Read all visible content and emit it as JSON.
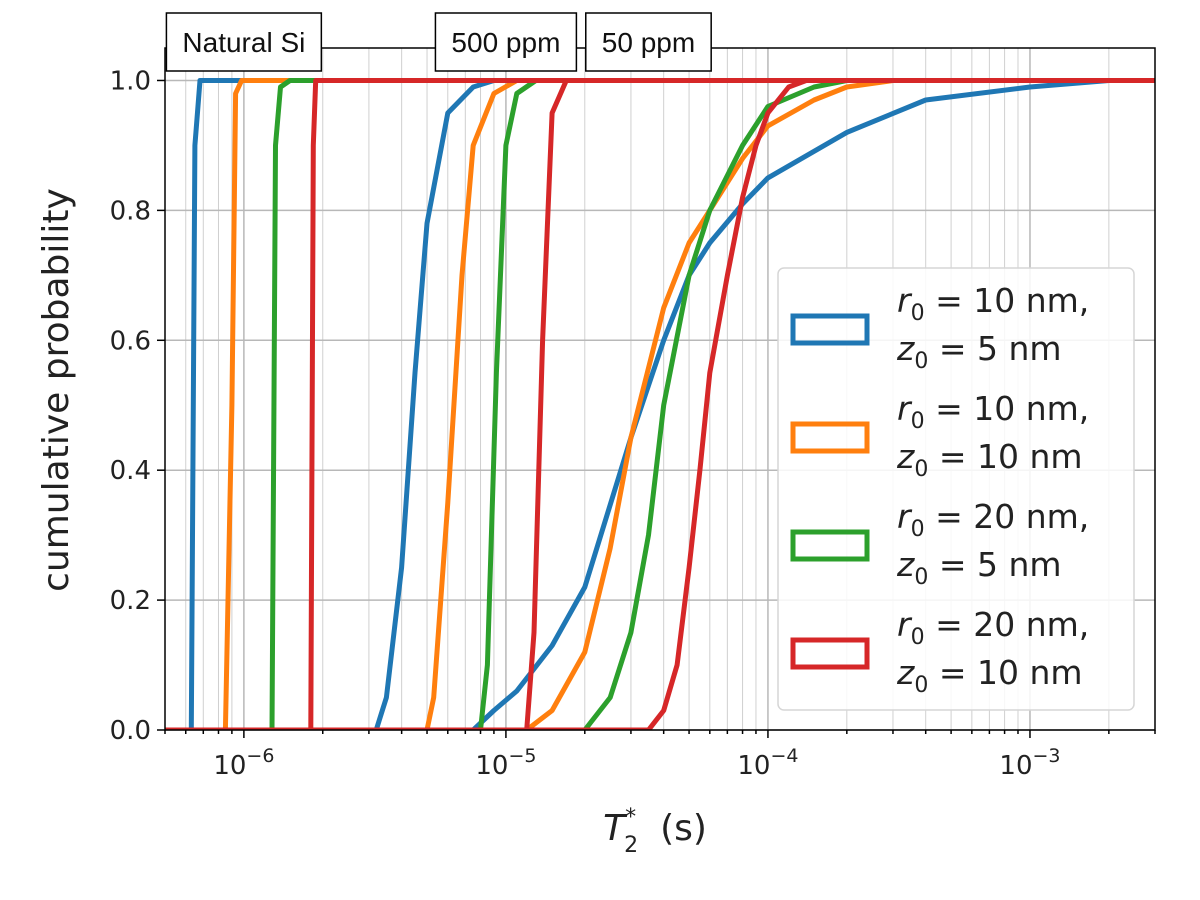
{
  "chart_data": {
    "type": "line",
    "xscale": "log",
    "xlim": [
      5e-07,
      0.003
    ],
    "ylim": [
      0,
      1.05
    ],
    "xlabel": {
      "main": "T",
      "sub": "2",
      "sup": "*",
      "unit": "(s)"
    },
    "ylabel": "cumulative probability",
    "grid": true,
    "xticks": [
      {
        "value": 1e-06,
        "base": "10",
        "exp": "−6"
      },
      {
        "value": 1e-05,
        "base": "10",
        "exp": "−5"
      },
      {
        "value": 0.0001,
        "base": "10",
        "exp": "−4"
      },
      {
        "value": 0.001,
        "base": "10",
        "exp": "−3"
      }
    ],
    "yticks": [
      "0.0",
      "0.2",
      "0.4",
      "0.6",
      "0.8",
      "1.0"
    ],
    "group_labels": [
      {
        "text": "Natural Si",
        "x": 1e-06
      },
      {
        "text": "500 ppm",
        "x": 1e-05
      },
      {
        "text": "50 ppm",
        "x": 3.5e-05
      }
    ],
    "legend_position": "center-right",
    "series": [
      {
        "name": "r0 = 10 nm, z0 = 5 nm",
        "legend": {
          "r": "10",
          "z": "5"
        },
        "color": "#1f77b4",
        "groups": [
          {
            "points": [
              [
                6e-07,
                0.0
              ],
              [
                6.3e-07,
                0.0
              ],
              [
                6.5e-07,
                0.9
              ],
              [
                6.8e-07,
                1.0
              ],
              [
                0.003,
                1.0
              ]
            ]
          },
          {
            "points": [
              [
                5e-07,
                0.0
              ],
              [
                3.2e-06,
                0.0
              ],
              [
                3.5e-06,
                0.05
              ],
              [
                4e-06,
                0.25
              ],
              [
                4.5e-06,
                0.55
              ],
              [
                5e-06,
                0.78
              ],
              [
                6e-06,
                0.95
              ],
              [
                7.5e-06,
                0.99
              ],
              [
                9e-06,
                1.0
              ],
              [
                0.003,
                1.0
              ]
            ]
          },
          {
            "points": [
              [
                5e-07,
                0.0
              ],
              [
                7.5e-06,
                0.0
              ],
              [
                9e-06,
                0.03
              ],
              [
                1.1e-05,
                0.06
              ],
              [
                1.5e-05,
                0.13
              ],
              [
                2e-05,
                0.22
              ],
              [
                3e-05,
                0.45
              ],
              [
                4e-05,
                0.6
              ],
              [
                5e-05,
                0.7
              ],
              [
                6e-05,
                0.75
              ],
              [
                8e-05,
                0.81
              ],
              [
                0.0001,
                0.85
              ],
              [
                0.0002,
                0.92
              ],
              [
                0.0004,
                0.97
              ],
              [
                0.001,
                0.99
              ],
              [
                0.002,
                1.0
              ],
              [
                0.003,
                1.0
              ]
            ]
          }
        ]
      },
      {
        "name": "r0 = 10 nm, z0 = 10 nm",
        "legend": {
          "r": "10",
          "z": "10"
        },
        "color": "#ff7f0e",
        "groups": [
          {
            "points": [
              [
                5e-07,
                0.0
              ],
              [
                8.5e-07,
                0.0
              ],
              [
                9e-07,
                0.5
              ],
              [
                9.3e-07,
                0.98
              ],
              [
                9.8e-07,
                1.0
              ],
              [
                0.003,
                1.0
              ]
            ]
          },
          {
            "points": [
              [
                5e-07,
                0.0
              ],
              [
                5e-06,
                0.0
              ],
              [
                5.3e-06,
                0.05
              ],
              [
                6e-06,
                0.35
              ],
              [
                6.8e-06,
                0.7
              ],
              [
                7.5e-06,
                0.9
              ],
              [
                9e-06,
                0.98
              ],
              [
                1.1e-05,
                1.0
              ],
              [
                0.003,
                1.0
              ]
            ]
          },
          {
            "points": [
              [
                5e-07,
                0.0
              ],
              [
                1.2e-05,
                0.0
              ],
              [
                1.5e-05,
                0.03
              ],
              [
                2e-05,
                0.12
              ],
              [
                2.5e-05,
                0.28
              ],
              [
                3e-05,
                0.45
              ],
              [
                4e-05,
                0.65
              ],
              [
                5e-05,
                0.75
              ],
              [
                6e-05,
                0.8
              ],
              [
                8e-05,
                0.88
              ],
              [
                0.0001,
                0.93
              ],
              [
                0.00015,
                0.97
              ],
              [
                0.0002,
                0.99
              ],
              [
                0.0003,
                1.0
              ],
              [
                0.003,
                1.0
              ]
            ]
          }
        ]
      },
      {
        "name": "r0 = 20 nm, z0 = 5 nm",
        "legend": {
          "r": "20",
          "z": "5"
        },
        "color": "#2ca02c",
        "groups": [
          {
            "points": [
              [
                5e-07,
                0.0
              ],
              [
                1.28e-06,
                0.0
              ],
              [
                1.32e-06,
                0.9
              ],
              [
                1.38e-06,
                0.99
              ],
              [
                1.5e-06,
                1.0
              ],
              [
                0.003,
                1.0
              ]
            ]
          },
          {
            "points": [
              [
                5e-07,
                0.0
              ],
              [
                8e-06,
                0.0
              ],
              [
                8.5e-06,
                0.1
              ],
              [
                9.2e-06,
                0.55
              ],
              [
                1e-05,
                0.9
              ],
              [
                1.1e-05,
                0.98
              ],
              [
                1.3e-05,
                1.0
              ],
              [
                0.003,
                1.0
              ]
            ]
          },
          {
            "points": [
              [
                5e-07,
                0.0
              ],
              [
                2e-05,
                0.0
              ],
              [
                2.5e-05,
                0.05
              ],
              [
                3e-05,
                0.15
              ],
              [
                3.5e-05,
                0.3
              ],
              [
                4e-05,
                0.5
              ],
              [
                5e-05,
                0.7
              ],
              [
                6e-05,
                0.8
              ],
              [
                8e-05,
                0.9
              ],
              [
                0.0001,
                0.96
              ],
              [
                0.00015,
                0.99
              ],
              [
                0.0002,
                1.0
              ],
              [
                0.003,
                1.0
              ]
            ]
          }
        ]
      },
      {
        "name": "r0 = 20 nm, z0 = 10 nm",
        "legend": {
          "r": "20",
          "z": "10"
        },
        "color": "#d62728",
        "groups": [
          {
            "points": [
              [
                5e-07,
                0.0
              ],
              [
                1.8e-06,
                0.0
              ],
              [
                1.84e-06,
                0.9
              ],
              [
                1.88e-06,
                1.0
              ],
              [
                0.003,
                1.0
              ]
            ]
          },
          {
            "points": [
              [
                5e-07,
                0.0
              ],
              [
                1.2e-05,
                0.0
              ],
              [
                1.28e-05,
                0.15
              ],
              [
                1.38e-05,
                0.6
              ],
              [
                1.5e-05,
                0.95
              ],
              [
                1.7e-05,
                1.0
              ],
              [
                0.003,
                1.0
              ]
            ]
          },
          {
            "points": [
              [
                5e-07,
                0.0
              ],
              [
                3.5e-05,
                0.0
              ],
              [
                4e-05,
                0.03
              ],
              [
                4.5e-05,
                0.1
              ],
              [
                5e-05,
                0.25
              ],
              [
                5.5e-05,
                0.4
              ],
              [
                6e-05,
                0.55
              ],
              [
                7e-05,
                0.7
              ],
              [
                8e-05,
                0.82
              ],
              [
                9e-05,
                0.9
              ],
              [
                0.0001,
                0.95
              ],
              [
                0.00012,
                0.99
              ],
              [
                0.00014,
                1.0
              ],
              [
                0.003,
                1.0
              ]
            ]
          }
        ]
      }
    ]
  }
}
